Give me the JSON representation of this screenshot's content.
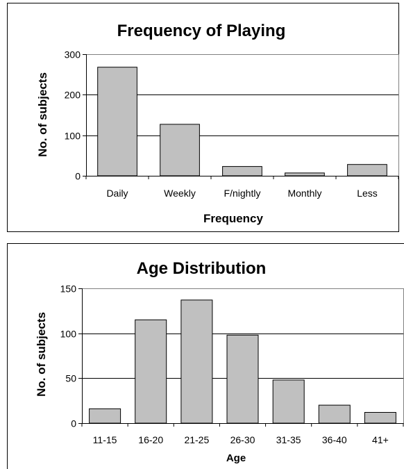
{
  "chart_data": [
    {
      "type": "bar",
      "title": "Frequency of Playing",
      "xlabel": "Frequency",
      "ylabel": "No. of subjects",
      "ylim": [
        0,
        300
      ],
      "yticks": [
        0,
        100,
        200,
        300
      ],
      "grid": true,
      "categories": [
        "Daily",
        "Weekly",
        "F/nightly",
        "Monthly",
        "Less"
      ],
      "values": [
        268,
        127,
        23,
        7,
        28
      ],
      "bar_color": "#c0c0c0"
    },
    {
      "type": "bar",
      "title": "Age Distribution",
      "xlabel": "Age",
      "ylabel": "No. of subjects",
      "ylim": [
        0,
        150
      ],
      "yticks": [
        0,
        50,
        100,
        150
      ],
      "grid": true,
      "categories": [
        "11-15",
        "16-20",
        "21-25",
        "26-30",
        "31-35",
        "36-40",
        "41+"
      ],
      "values": [
        16,
        115,
        137,
        98,
        48,
        20,
        12
      ],
      "bar_color": "#c0c0c0"
    }
  ]
}
